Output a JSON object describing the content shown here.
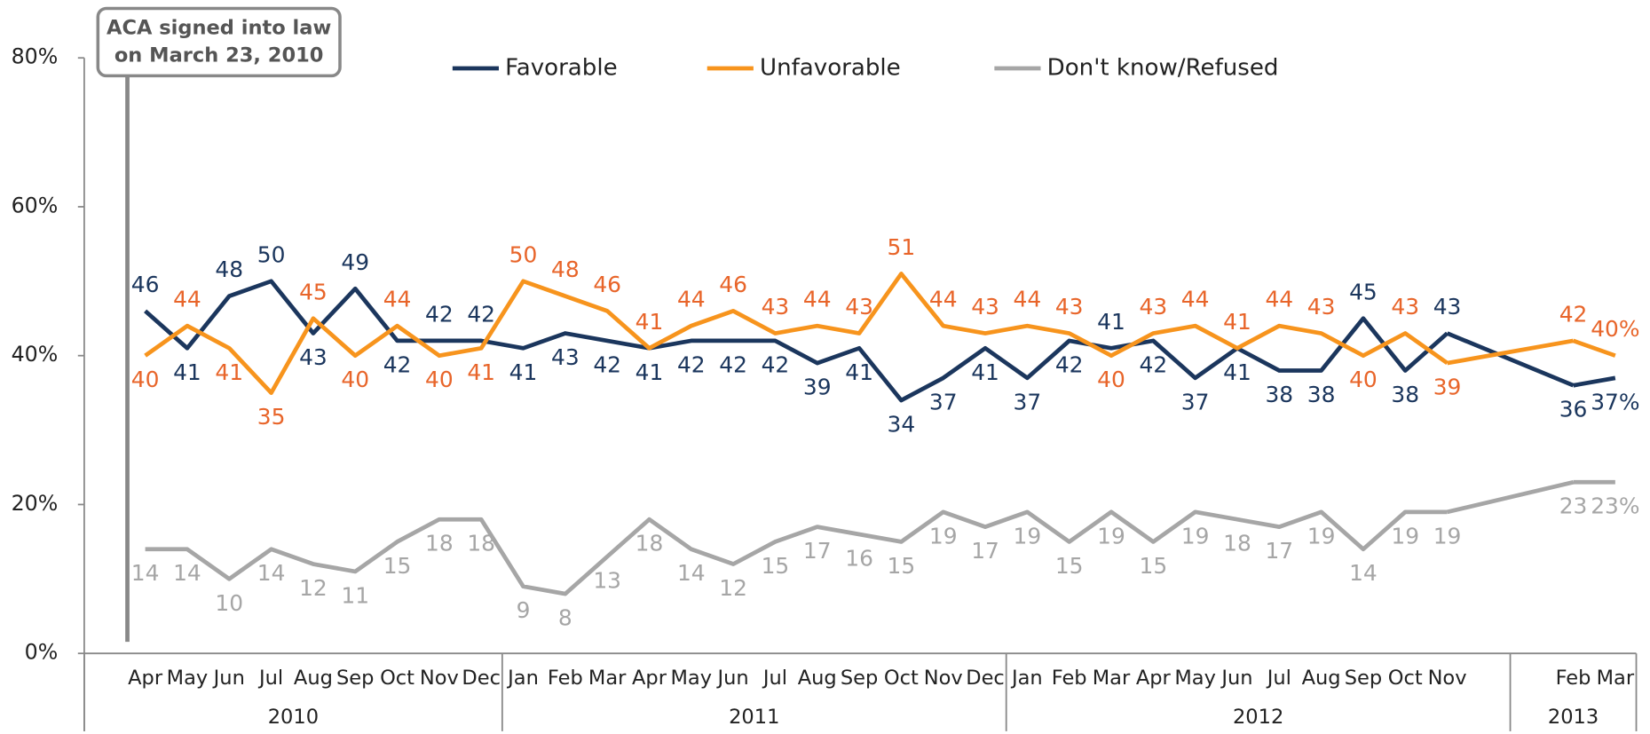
{
  "chart_data": {
    "type": "line",
    "annotation": [
      "ACA signed into law",
      "on March 23, 2010"
    ],
    "category_groups": [
      {
        "label": "2010",
        "categories": [
          "Apr",
          "May",
          "Jun",
          "Jul",
          "Aug",
          "Sep",
          "Oct",
          "Nov",
          "Dec"
        ]
      },
      {
        "label": "2011",
        "categories": [
          "Jan",
          "Feb",
          "Mar",
          "Apr",
          "May",
          "Jun",
          "Jul",
          "Aug",
          "Sep",
          "Oct",
          "Nov",
          "Dec"
        ]
      },
      {
        "label": "2012",
        "categories": [
          "Jan",
          "Feb",
          "Mar",
          "Apr",
          "May",
          "Jun",
          "Jul",
          "Aug",
          "Sep",
          "Oct",
          "Nov",
          null
        ]
      },
      {
        "label": "2013",
        "categories": [
          null,
          "Feb",
          "Mar"
        ]
      }
    ],
    "series": [
      {
        "name": "Favorable",
        "color": "#1b365d",
        "label_color": "#1b365d",
        "values": [
          46,
          41,
          48,
          50,
          43,
          49,
          42,
          42,
          42,
          41,
          43,
          42,
          41,
          42,
          42,
          42,
          39,
          41,
          34,
          37,
          41,
          37,
          42,
          41,
          42,
          37,
          41,
          38,
          38,
          45,
          38,
          43,
          null,
          null,
          36,
          37
        ],
        "value_labels": [
          "46",
          "41",
          "48",
          "50",
          "43",
          "49",
          "42",
          "42",
          "42",
          "41",
          "43",
          "42",
          "41",
          "42",
          "42",
          "42",
          "39",
          "41",
          "34",
          "37",
          "41",
          "37",
          "42",
          "41",
          "42",
          "37",
          "41",
          "38",
          "38",
          "45",
          "38",
          "43",
          null,
          null,
          "36",
          "37%"
        ]
      },
      {
        "name": "Unfavorable",
        "color": "#f7941d",
        "label_color": "#e8652a",
        "values": [
          40,
          44,
          41,
          35,
          45,
          40,
          44,
          40,
          41,
          50,
          48,
          46,
          41,
          44,
          46,
          43,
          44,
          43,
          51,
          44,
          43,
          44,
          43,
          40,
          43,
          44,
          41,
          44,
          43,
          40,
          43,
          39,
          null,
          null,
          42,
          40
        ],
        "value_labels": [
          "40",
          "44",
          "41",
          "35",
          "45",
          "40",
          "44",
          "40",
          "41",
          "50",
          "48",
          "46",
          "41",
          "44",
          "46",
          "43",
          "44",
          "43",
          "51",
          "44",
          "43",
          "44",
          "43",
          "40",
          "43",
          "44",
          "41",
          "44",
          "43",
          "40",
          "43",
          "39",
          null,
          null,
          "42",
          "40%"
        ]
      },
      {
        "name": "Don't know/Refused",
        "color": "#a6a6a6",
        "label_color": "#a6a6a6",
        "values": [
          14,
          14,
          10,
          14,
          12,
          11,
          15,
          18,
          18,
          9,
          8,
          13,
          18,
          14,
          12,
          15,
          17,
          16,
          15,
          19,
          17,
          19,
          15,
          19,
          15,
          19,
          18,
          17,
          19,
          14,
          19,
          19,
          null,
          null,
          23,
          23
        ],
        "value_labels": [
          "14",
          "14",
          "10",
          "14",
          "12",
          "11",
          "15",
          "18",
          "18",
          "9",
          "8",
          "13",
          "18",
          "14",
          "12",
          "15",
          "17",
          "16",
          "15",
          "19",
          "17",
          "19",
          "15",
          "19",
          "15",
          "19",
          "18",
          "17",
          "19",
          "14",
          "19",
          "19",
          null,
          null,
          "23",
          "23%"
        ]
      }
    ],
    "ylim": [
      0,
      80
    ],
    "yticks": [
      {
        "value": 0,
        "label": "0%"
      },
      {
        "value": 20,
        "label": "20%"
      },
      {
        "value": 40,
        "label": "40%"
      },
      {
        "value": 60,
        "label": "60%"
      },
      {
        "value": 80,
        "label": "80%"
      }
    ],
    "legend": "top"
  }
}
